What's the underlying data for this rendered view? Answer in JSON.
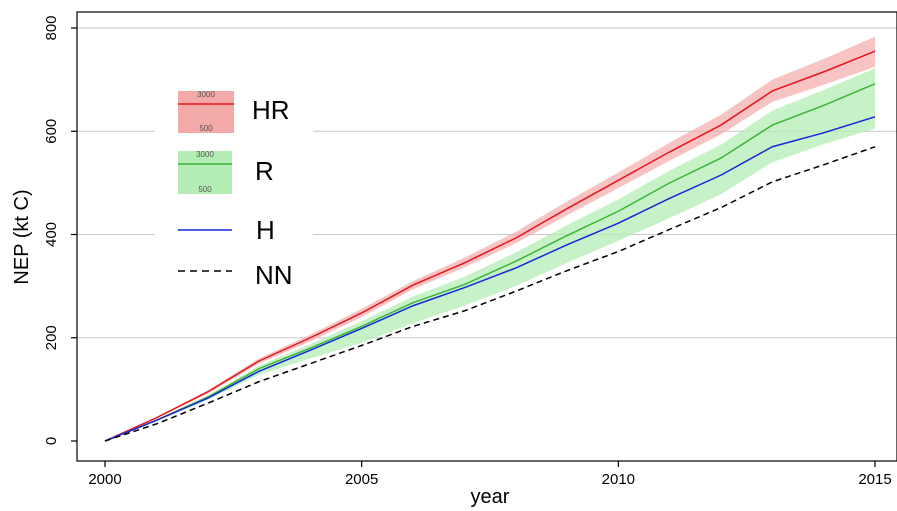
{
  "chart_data": {
    "type": "line",
    "title": "",
    "xlabel": "year",
    "ylabel": "NEP (kt C)",
    "xlim": [
      2000,
      2015
    ],
    "ylim": [
      0,
      800
    ],
    "x_ticks": [
      2000,
      2005,
      2010,
      2015
    ],
    "y_ticks": [
      0,
      200,
      400,
      600,
      800
    ],
    "grid": true,
    "legend_position": "top-left",
    "x": [
      2000,
      2001,
      2002,
      2003,
      2004,
      2005,
      2006,
      2007,
      2008,
      2009,
      2010,
      2011,
      2012,
      2013,
      2014,
      2015
    ],
    "series": [
      {
        "name": "HR",
        "color": "#e8141e",
        "band_color": "#f4a9a9",
        "style": "solid",
        "values": [
          0,
          45,
          95,
          155,
          200,
          248,
          302,
          345,
          393,
          450,
          505,
          560,
          612,
          678,
          715,
          755
        ],
        "band_upper": [
          0,
          46,
          98,
          160,
          206,
          256,
          310,
          355,
          405,
          464,
          520,
          578,
          632,
          700,
          740,
          783
        ],
        "band_lower": [
          0,
          44,
          92,
          150,
          193,
          240,
          294,
          336,
          383,
          437,
          490,
          543,
          594,
          657,
          690,
          725
        ]
      },
      {
        "name": "R",
        "color": "#3cb43c",
        "band_color": "#b4edb4",
        "style": "solid",
        "values": [
          0,
          40,
          85,
          140,
          180,
          222,
          268,
          303,
          348,
          398,
          445,
          500,
          548,
          612,
          650,
          692
        ],
        "band_upper": [
          0,
          42,
          88,
          146,
          188,
          232,
          280,
          318,
          365,
          418,
          468,
          524,
          574,
          640,
          680,
          722
        ],
        "band_lower": [
          0,
          38,
          80,
          128,
          160,
          190,
          228,
          262,
          300,
          345,
          388,
          432,
          478,
          540,
          575,
          605
        ]
      },
      {
        "name": "H",
        "color": "#1428dc",
        "style": "solid",
        "values": [
          0,
          40,
          83,
          135,
          176,
          218,
          262,
          297,
          335,
          380,
          422,
          470,
          515,
          570,
          597,
          628
        ]
      },
      {
        "name": "NN",
        "color": "#000000",
        "style": "dashed",
        "values": [
          0,
          33,
          73,
          115,
          150,
          185,
          222,
          252,
          290,
          330,
          367,
          410,
          452,
          502,
          535,
          570
        ]
      }
    ],
    "legend": {
      "band_top_label": "3000",
      "band_bottom_label": "500"
    }
  }
}
